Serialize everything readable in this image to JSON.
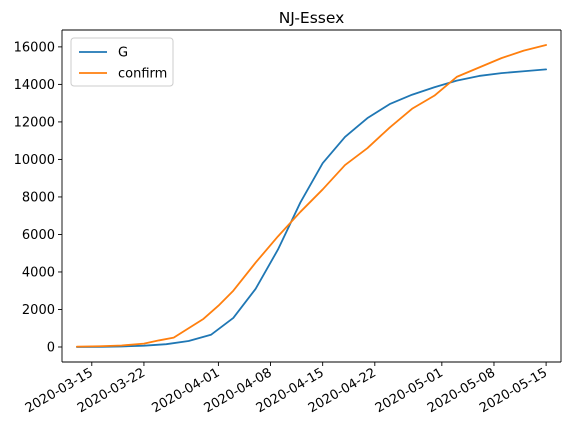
{
  "chart_data": {
    "type": "line",
    "title": "NJ-Essex",
    "xlabel": "",
    "ylabel": "",
    "x_ticks": [
      "2020-03-15",
      "2020-03-22",
      "2020-04-01",
      "2020-04-08",
      "2020-04-15",
      "2020-04-22",
      "2020-05-01",
      "2020-05-08",
      "2020-05-15"
    ],
    "y_ticks": [
      0,
      2000,
      4000,
      6000,
      8000,
      10000,
      12000,
      14000,
      16000
    ],
    "xlim": [
      "2020-03-11",
      "2020-05-17"
    ],
    "ylim": [
      -800,
      16900
    ],
    "grid": false,
    "legend_position": "upper-left",
    "series": [
      {
        "name": "G",
        "color": "#1f77b4",
        "x": [
          "2020-03-13",
          "2020-03-16",
          "2020-03-19",
          "2020-03-22",
          "2020-03-25",
          "2020-03-28",
          "2020-03-31",
          "2020-04-03",
          "2020-04-06",
          "2020-04-09",
          "2020-04-12",
          "2020-04-15",
          "2020-04-18",
          "2020-04-21",
          "2020-04-24",
          "2020-04-27",
          "2020-04-30",
          "2020-05-03",
          "2020-05-06",
          "2020-05-09",
          "2020-05-12",
          "2020-05-15"
        ],
        "y": [
          0,
          10,
          30,
          70,
          150,
          320,
          650,
          1550,
          3100,
          5200,
          7700,
          9800,
          11200,
          12200,
          12950,
          13450,
          13850,
          14200,
          14450,
          14600,
          14700,
          14800
        ]
      },
      {
        "name": "confirm",
        "color": "#ff7f0e",
        "x": [
          "2020-03-13",
          "2020-03-16",
          "2020-03-19",
          "2020-03-22",
          "2020-03-24",
          "2020-03-26",
          "2020-03-28",
          "2020-03-30",
          "2020-04-01",
          "2020-04-03",
          "2020-04-06",
          "2020-04-09",
          "2020-04-12",
          "2020-04-15",
          "2020-04-18",
          "2020-04-21",
          "2020-04-24",
          "2020-04-27",
          "2020-04-30",
          "2020-05-03",
          "2020-05-06",
          "2020-05-09",
          "2020-05-12",
          "2020-05-15"
        ],
        "y": [
          20,
          40,
          80,
          180,
          350,
          500,
          1000,
          1500,
          2200,
          3000,
          4500,
          5900,
          7200,
          8400,
          9700,
          10600,
          11700,
          12700,
          13400,
          14400,
          14900,
          15400,
          15800,
          16100
        ]
      }
    ]
  }
}
